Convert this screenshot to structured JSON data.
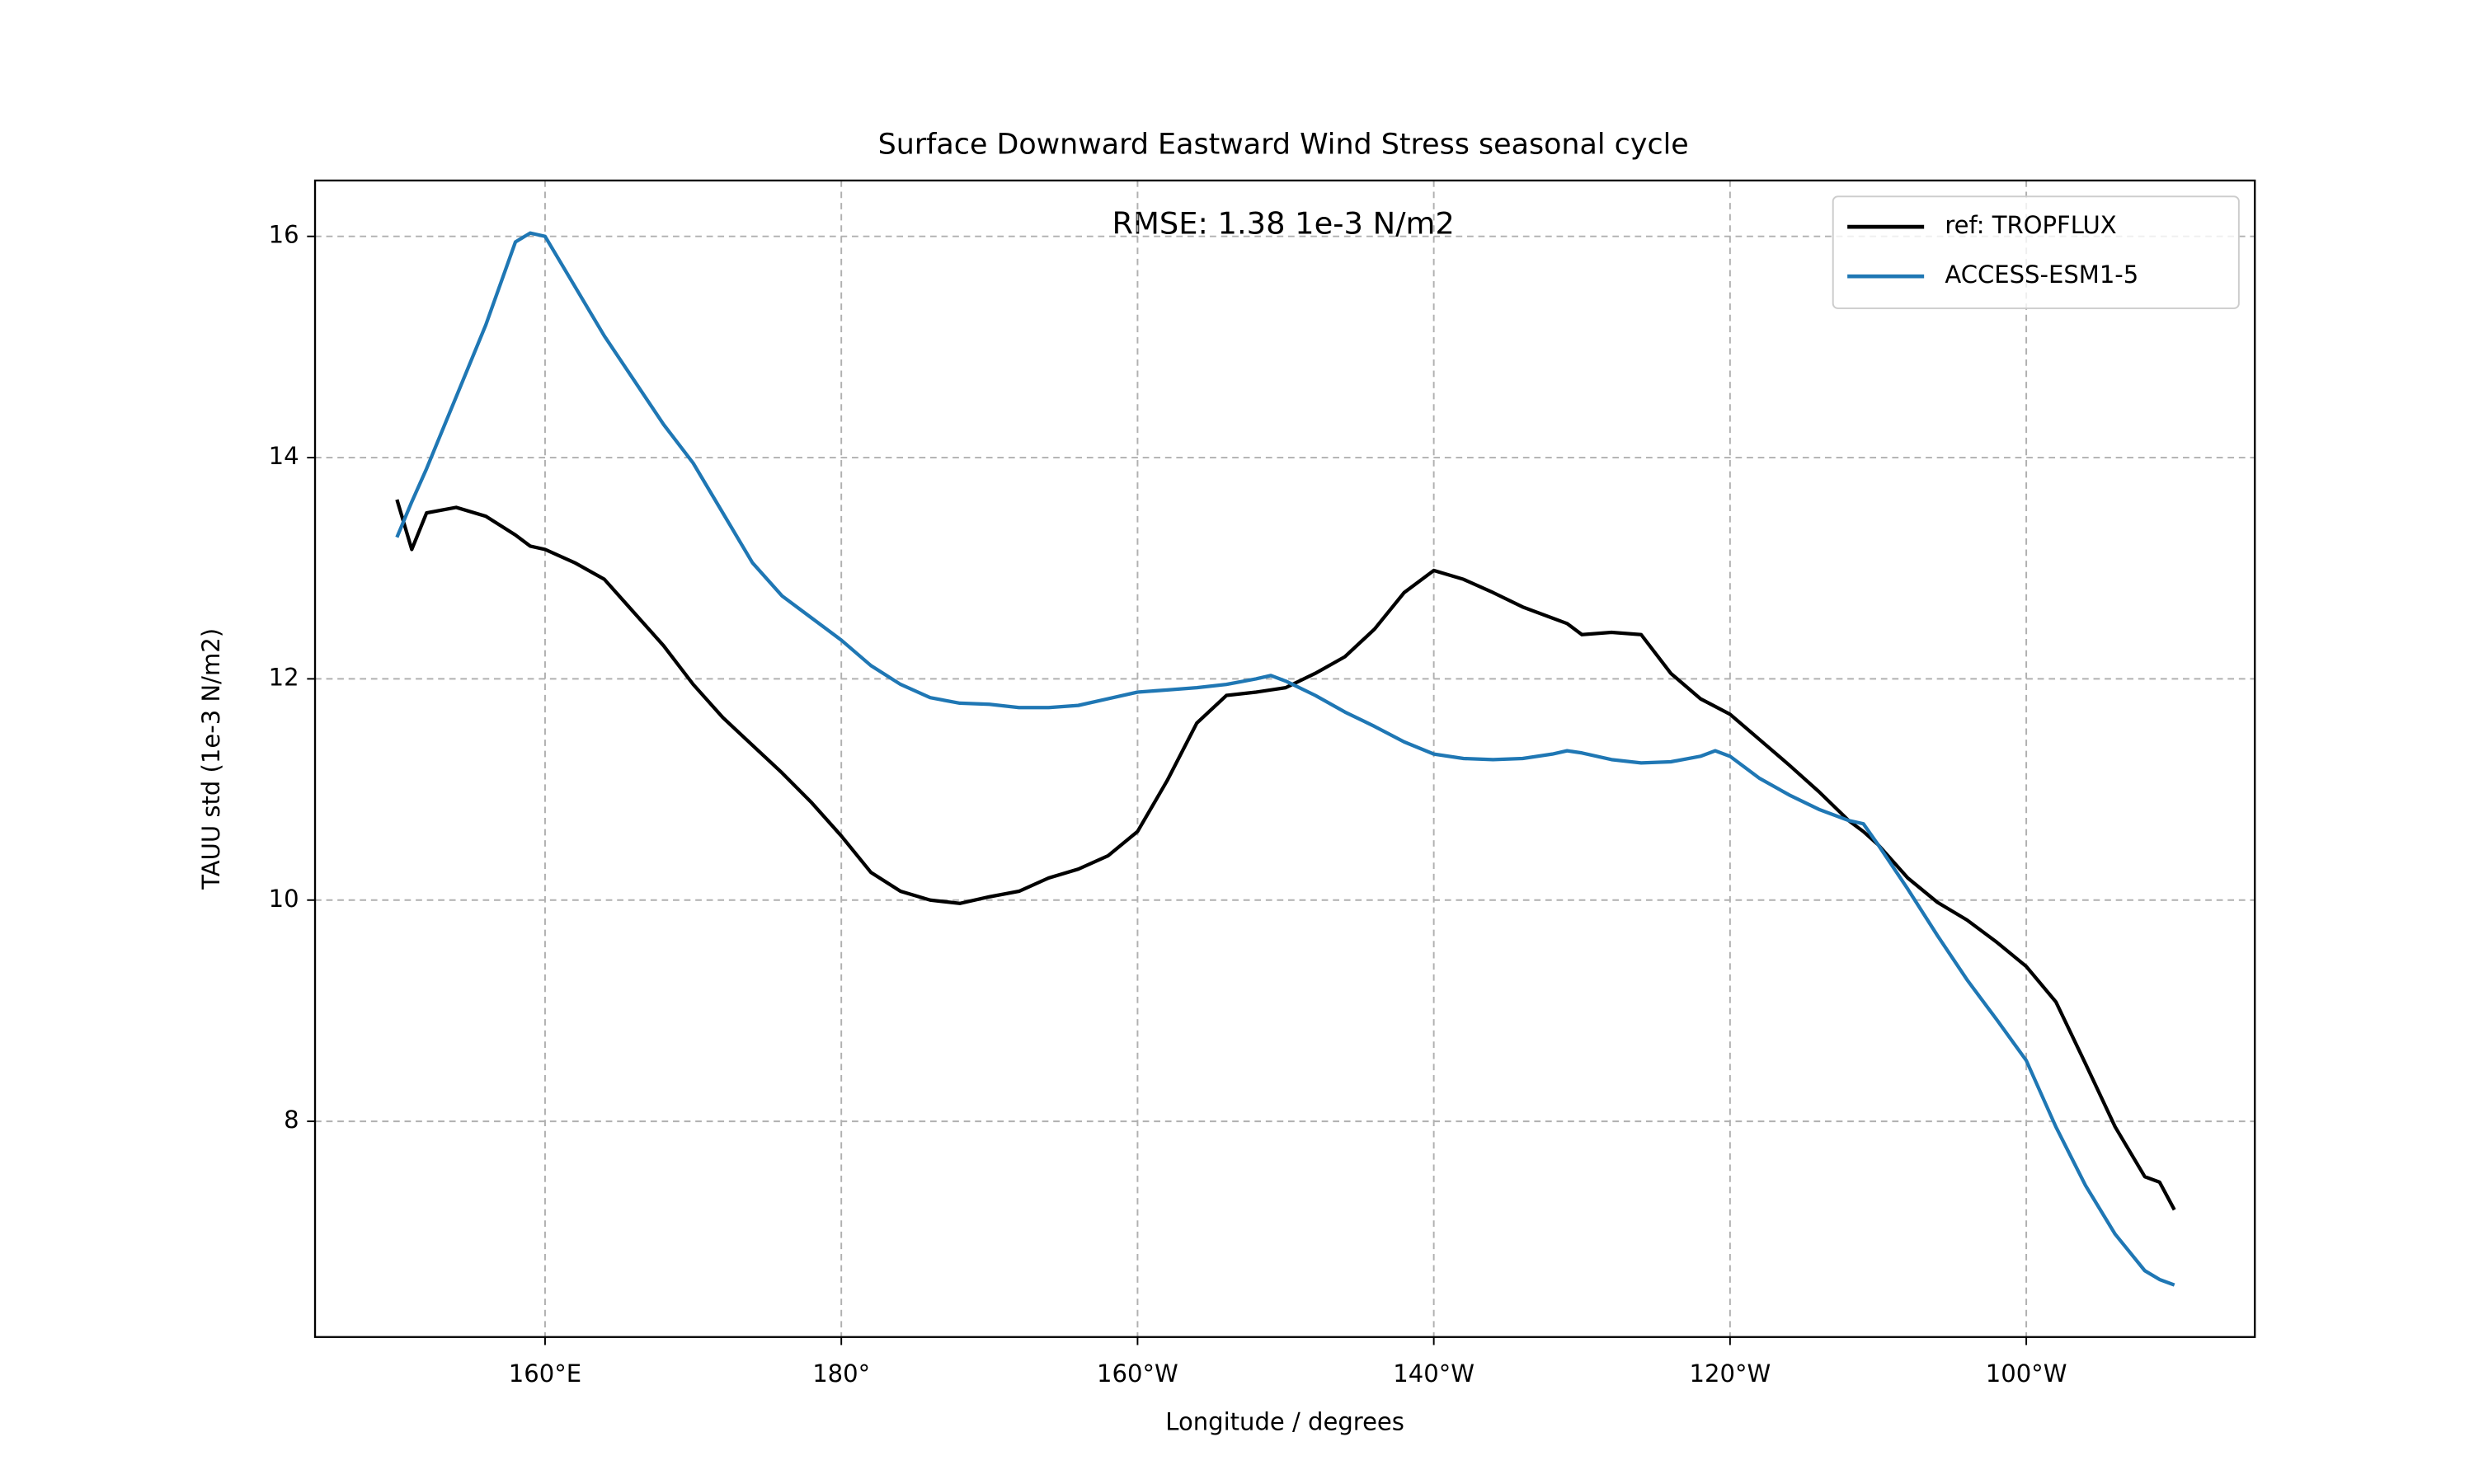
{
  "chart_data": {
    "type": "line",
    "title": "Surface Downward Eastward Wind Stress seasonal cycle",
    "annotation": "RMSE: 1.38 1e-3 N/m2",
    "xlabel": "Longitude / degrees",
    "ylabel": "TAUU std (1e-3 N/m2)",
    "x": [
      150,
      151,
      152,
      154,
      156,
      158,
      159,
      160,
      162,
      164,
      166,
      168,
      170,
      172,
      174,
      176,
      178,
      180,
      182,
      184,
      186,
      188,
      190,
      192,
      194,
      196,
      198,
      200,
      202,
      204,
      206,
      208,
      209,
      210,
      212,
      214,
      216,
      218,
      220,
      222,
      224,
      226,
      228,
      229,
      230,
      232,
      234,
      236,
      238,
      239,
      240,
      242,
      244,
      246,
      248,
      249,
      250,
      252,
      254,
      256,
      258,
      260,
      262,
      264,
      266,
      268,
      269,
      270
    ],
    "series": [
      {
        "name": "ref: TROPFLUX",
        "color": "#000000",
        "values": [
          13.62,
          13.17,
          13.5,
          13.55,
          13.47,
          13.3,
          13.2,
          13.17,
          13.05,
          12.9,
          12.6,
          12.3,
          11.95,
          11.65,
          11.4,
          11.15,
          10.88,
          10.58,
          10.25,
          10.08,
          10.0,
          9.97,
          10.03,
          10.08,
          10.2,
          10.28,
          10.4,
          10.62,
          11.08,
          11.6,
          11.85,
          11.88,
          11.9,
          11.92,
          12.05,
          12.2,
          12.45,
          12.78,
          12.98,
          12.9,
          12.78,
          12.65,
          12.55,
          12.5,
          12.4,
          12.42,
          12.4,
          12.05,
          11.82,
          11.75,
          11.68,
          11.45,
          11.22,
          10.98,
          10.72,
          10.62,
          10.5,
          10.2,
          9.98,
          9.82,
          9.62,
          9.4,
          9.08,
          8.52,
          7.95,
          7.5,
          7.45,
          7.2
        ]
      },
      {
        "name": "ACCESS-ESM1-5",
        "color": "#1f77b4",
        "values": [
          13.28,
          13.6,
          13.9,
          14.55,
          15.2,
          15.95,
          16.03,
          16.0,
          15.55,
          15.1,
          14.7,
          14.3,
          13.95,
          13.5,
          13.05,
          12.75,
          12.55,
          12.35,
          12.12,
          11.95,
          11.83,
          11.78,
          11.77,
          11.74,
          11.74,
          11.76,
          11.82,
          11.88,
          11.9,
          11.92,
          11.95,
          12.0,
          12.03,
          11.98,
          11.85,
          11.7,
          11.57,
          11.43,
          11.32,
          11.28,
          11.27,
          11.28,
          11.32,
          11.35,
          11.33,
          11.27,
          11.24,
          11.25,
          11.3,
          11.35,
          11.3,
          11.1,
          10.95,
          10.82,
          10.72,
          10.69,
          10.5,
          10.1,
          9.68,
          9.28,
          8.92,
          8.55,
          7.95,
          7.42,
          6.98,
          6.65,
          6.57,
          6.52
        ]
      }
    ],
    "xlim": [
      144.47,
      275.43
    ],
    "xticks": [
      {
        "value": 160,
        "label": "160°E"
      },
      {
        "value": 180,
        "label": "180°"
      },
      {
        "value": 200,
        "label": "160°W"
      },
      {
        "value": 220,
        "label": "140°W"
      },
      {
        "value": 240,
        "label": "120°W"
      },
      {
        "value": 260,
        "label": "100°W"
      }
    ],
    "ylim": [
      6.05,
      16.505
    ],
    "yticks": [
      8,
      10,
      12,
      14,
      16
    ],
    "grid": true,
    "legend": "upper right"
  }
}
